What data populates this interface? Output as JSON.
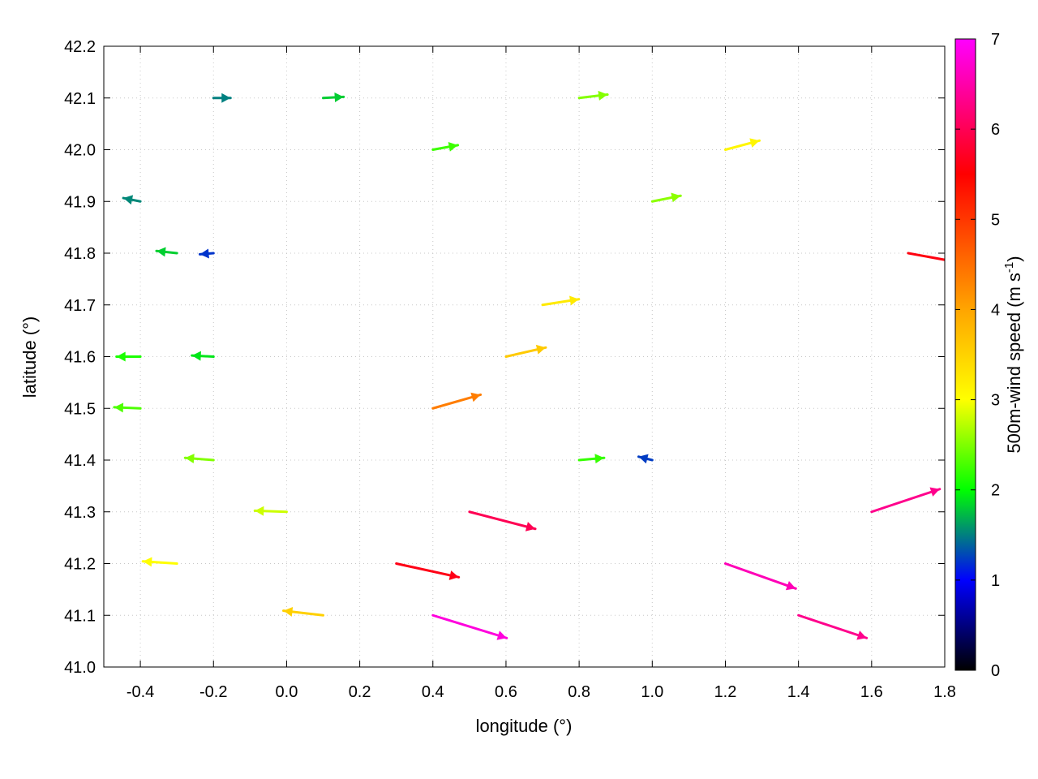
{
  "chart_data": {
    "type": "vector_field",
    "xlabel": "longitude (°)",
    "ylabel": "latitude (°)",
    "xlim": [
      -0.5,
      1.8
    ],
    "ylim": [
      41.0,
      42.2
    ],
    "xticks": [
      "-0.4",
      "-0.2",
      "0.0",
      "0.2",
      "0.4",
      "0.6",
      "0.8",
      "1.0",
      "1.2",
      "1.4",
      "1.6",
      "1.8"
    ],
    "xtick_values": [
      -0.4,
      -0.2,
      0.0,
      0.2,
      0.4,
      0.6,
      0.8,
      1.0,
      1.2,
      1.4,
      1.6,
      1.8
    ],
    "yticks": [
      "41.0",
      "41.1",
      "41.2",
      "41.3",
      "41.4",
      "41.5",
      "41.6",
      "41.7",
      "41.8",
      "41.9",
      "42.0",
      "42.1",
      "42.2"
    ],
    "ytick_values": [
      41.0,
      41.1,
      41.2,
      41.3,
      41.4,
      41.5,
      41.6,
      41.7,
      41.8,
      41.9,
      42.0,
      42.1,
      42.2
    ],
    "grid": true,
    "colorbar": {
      "label": "500m-wind speed (m s",
      "label_sup": "-1",
      "label_end": ")",
      "range": [
        0,
        7
      ],
      "ticks": [
        "0",
        "1",
        "2",
        "3",
        "4",
        "5",
        "6",
        "7"
      ],
      "tick_values": [
        0,
        1,
        2,
        3,
        4,
        5,
        6,
        7
      ],
      "colors": [
        "#000000",
        "#0000ff",
        "#00ff00",
        "#ffff00",
        "#ffa500",
        "#ff0000",
        "#ff00ff"
      ],
      "color_stops": [
        0,
        1,
        2,
        3,
        4,
        5.5,
        7
      ]
    },
    "vectors": [
      {
        "lon": -0.4,
        "lat": 41.9,
        "u": -1.5,
        "v": 0.3
      },
      {
        "lon": -0.3,
        "lat": 41.8,
        "u": -1.8,
        "v": 0.2
      },
      {
        "lon": -0.2,
        "lat": 41.8,
        "u": -1.2,
        "v": -0.1
      },
      {
        "lon": -0.4,
        "lat": 41.6,
        "u": -2.1,
        "v": 0.0
      },
      {
        "lon": -0.2,
        "lat": 41.6,
        "u": -1.9,
        "v": 0.1
      },
      {
        "lon": -0.4,
        "lat": 41.5,
        "u": -2.3,
        "v": 0.1
      },
      {
        "lon": -0.2,
        "lat": 41.4,
        "u": -2.5,
        "v": 0.2
      },
      {
        "lon": 0.0,
        "lat": 41.3,
        "u": -2.8,
        "v": 0.1
      },
      {
        "lon": -0.3,
        "lat": 41.2,
        "u": -3.0,
        "v": 0.2
      },
      {
        "lon": 0.1,
        "lat": 41.1,
        "u": -3.5,
        "v": 0.4
      },
      {
        "lon": 0.3,
        "lat": 41.2,
        "u": 5.5,
        "v": -1.2
      },
      {
        "lon": 0.4,
        "lat": 41.1,
        "u": 6.5,
        "v": -2.0
      },
      {
        "lon": 0.5,
        "lat": 41.3,
        "u": 5.8,
        "v": -1.5
      },
      {
        "lon": 0.4,
        "lat": 41.5,
        "u": 4.2,
        "v": 1.2
      },
      {
        "lon": 0.6,
        "lat": 41.6,
        "u": 3.5,
        "v": 0.8
      },
      {
        "lon": 0.7,
        "lat": 41.7,
        "u": 3.2,
        "v": 0.5
      },
      {
        "lon": 0.8,
        "lat": 41.4,
        "u": 2.2,
        "v": 0.2
      },
      {
        "lon": 1.0,
        "lat": 41.4,
        "u": -1.2,
        "v": 0.3
      },
      {
        "lon": 1.2,
        "lat": 41.2,
        "u": 6.2,
        "v": -2.2
      },
      {
        "lon": 1.4,
        "lat": 41.1,
        "u": 6.0,
        "v": -2.0
      },
      {
        "lon": 1.6,
        "lat": 41.3,
        "u": 6.0,
        "v": 2.0
      },
      {
        "lon": 1.7,
        "lat": 41.8,
        "u": 5.5,
        "v": -1.0
      },
      {
        "lon": 1.0,
        "lat": 41.9,
        "u": 2.5,
        "v": 0.5
      },
      {
        "lon": 1.2,
        "lat": 42.0,
        "u": 3.0,
        "v": 0.8
      },
      {
        "lon": 0.8,
        "lat": 42.1,
        "u": 2.5,
        "v": 0.3
      },
      {
        "lon": 0.4,
        "lat": 42.0,
        "u": 2.2,
        "v": 0.4
      },
      {
        "lon": 0.1,
        "lat": 42.1,
        "u": 1.8,
        "v": 0.1
      },
      {
        "lon": -0.2,
        "lat": 42.1,
        "u": 1.5,
        "v": 0.0
      }
    ]
  }
}
